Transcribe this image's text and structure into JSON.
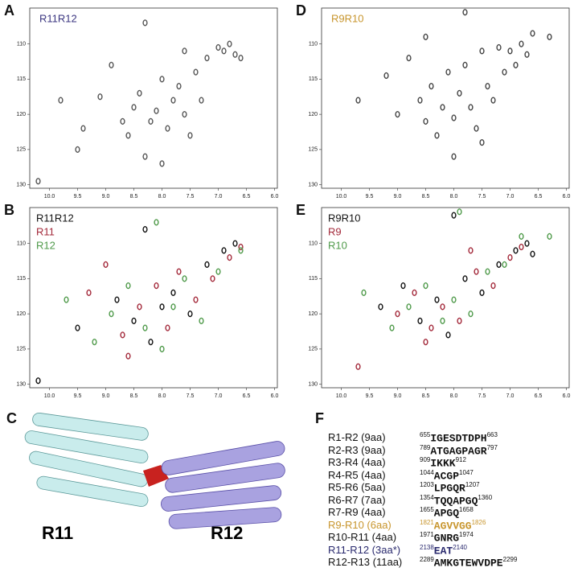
{
  "chart_data": [
    {
      "type": "scatter",
      "panel_label": "A",
      "xlim": [
        10.35,
        5.95
      ],
      "ylim": [
        104.9,
        130.5
      ],
      "xticks": [
        {
          "value": 10,
          "label": "10.0"
        },
        9.5,
        {
          "value": 9,
          "label": "9.0"
        },
        8.5,
        {
          "value": 8,
          "label": "8.0"
        },
        7.5,
        {
          "value": 7,
          "label": "7.0"
        },
        6.5,
        {
          "value": 6,
          "label": "6.0"
        }
      ],
      "yticks": [
        110,
        115,
        120,
        125,
        130
      ],
      "series": [
        {
          "name": "R11R12",
          "color": "#555555",
          "legend_color": "#3b3680",
          "x": [
            10.2,
            9.8,
            9.5,
            9.4,
            9.1,
            8.9,
            8.7,
            8.6,
            8.5,
            8.4,
            8.3,
            8.2,
            8.1,
            8.0,
            7.9,
            7.8,
            7.7,
            7.6,
            7.5,
            7.4,
            7.3,
            7.2,
            7.0,
            6.9,
            6.8,
            6.7,
            6.6,
            8.3,
            7.6,
            8.0
          ],
          "y": [
            129.5,
            118,
            125,
            122,
            117.5,
            113,
            121,
            123,
            119,
            117,
            126,
            121,
            119.5,
            115,
            122,
            118,
            116,
            120,
            123,
            114,
            118,
            112,
            110.5,
            111,
            110,
            111.5,
            112,
            107,
            111,
            127
          ]
        }
      ]
    },
    {
      "type": "scatter",
      "panel_label": "B",
      "xlim": [
        10.35,
        5.95
      ],
      "ylim": [
        104.9,
        130.5
      ],
      "xticks": [
        {
          "value": 10,
          "label": "10.0"
        },
        9.5,
        {
          "value": 9,
          "label": "9.0"
        },
        8.5,
        {
          "value": 8,
          "label": "8.0"
        },
        7.5,
        {
          "value": 7,
          "label": "7.0"
        },
        6.5,
        {
          "value": 6,
          "label": "6.0"
        }
      ],
      "yticks": [
        110,
        115,
        120,
        125,
        130
      ],
      "series": [
        {
          "name": "R11R12",
          "color": "#111111",
          "legend_color": "#111111",
          "x": [
            10.2,
            9.5,
            8.8,
            8.5,
            8.2,
            8.0,
            7.8,
            7.5,
            7.2,
            6.9,
            6.7,
            8.3
          ],
          "y": [
            129.5,
            122,
            118,
            121,
            124,
            119,
            117,
            120,
            113,
            111,
            110,
            108
          ]
        },
        {
          "name": "R11",
          "color": "#a3293a",
          "legend_color": "#a3293a",
          "x": [
            9.3,
            9.0,
            8.7,
            8.4,
            8.1,
            7.9,
            7.7,
            7.4,
            7.1,
            6.8,
            6.6,
            8.6
          ],
          "y": [
            117,
            113,
            123,
            119,
            116,
            122,
            114,
            118,
            115,
            112,
            110.5,
            126
          ]
        },
        {
          "name": "R12",
          "color": "#4f9a4a",
          "legend_color": "#4f9a4a",
          "x": [
            9.7,
            9.2,
            8.9,
            8.6,
            8.3,
            8.0,
            7.8,
            7.6,
            7.3,
            7.0,
            6.6,
            8.1
          ],
          "y": [
            118,
            124,
            120,
            116,
            122,
            125,
            119,
            115,
            121,
            114,
            111,
            107
          ]
        }
      ]
    },
    {
      "type": "scatter",
      "panel_label": "D",
      "xlim": [
        10.35,
        5.95
      ],
      "ylim": [
        104.9,
        130.5
      ],
      "xticks": [
        {
          "value": 10,
          "label": "10.0"
        },
        9.5,
        {
          "value": 9,
          "label": "9.0"
        },
        8.5,
        {
          "value": 8,
          "label": "8.0"
        },
        7.5,
        {
          "value": 7,
          "label": "7.0"
        },
        6.5,
        {
          "value": 6,
          "label": "6.0"
        }
      ],
      "yticks": [
        110,
        115,
        120,
        125,
        130
      ],
      "series": [
        {
          "name": "R9R10",
          "color": "#444444",
          "legend_color": "#c8962e",
          "x": [
            9.7,
            9.2,
            9.0,
            8.8,
            8.6,
            8.5,
            8.4,
            8.3,
            8.2,
            8.1,
            8.0,
            7.9,
            7.8,
            7.7,
            7.6,
            7.5,
            7.4,
            7.3,
            7.2,
            7.1,
            7.0,
            6.9,
            6.8,
            6.7,
            6.6,
            6.3,
            7.8,
            8.5,
            8.0,
            7.5
          ],
          "y": [
            118,
            114.5,
            120,
            112,
            118,
            121,
            116,
            123,
            119,
            114,
            120.5,
            117,
            113,
            119,
            122,
            111,
            116,
            118,
            110.5,
            114,
            111,
            113,
            110,
            111.5,
            108.5,
            109,
            105.5,
            109,
            126,
            124
          ]
        }
      ]
    },
    {
      "type": "scatter",
      "panel_label": "E",
      "xlim": [
        10.35,
        5.95
      ],
      "ylim": [
        104.9,
        130.5
      ],
      "xticks": [
        {
          "value": 10,
          "label": "10.0"
        },
        9.5,
        {
          "value": 9,
          "label": "9.0"
        },
        8.5,
        {
          "value": 8,
          "label": "8.0"
        },
        7.5,
        {
          "value": 7,
          "label": "7.0"
        },
        6.5,
        {
          "value": 6,
          "label": "6.0"
        }
      ],
      "yticks": [
        110,
        115,
        120,
        125,
        130
      ],
      "series": [
        {
          "name": "R9R10",
          "color": "#111111",
          "legend_color": "#111111",
          "x": [
            9.3,
            8.9,
            8.6,
            8.3,
            8.1,
            7.8,
            7.5,
            7.2,
            6.9,
            6.7,
            6.6,
            8.0
          ],
          "y": [
            119,
            116,
            121,
            118,
            123,
            115,
            117,
            113,
            111,
            110,
            111.5,
            106
          ]
        },
        {
          "name": "R9",
          "color": "#a3293a",
          "legend_color": "#a3293a",
          "x": [
            9.7,
            9.0,
            8.7,
            8.4,
            8.2,
            7.9,
            7.6,
            7.3,
            7.0,
            6.8,
            8.5,
            7.7
          ],
          "y": [
            127.5,
            120,
            117,
            122,
            119,
            121,
            114,
            116,
            112,
            110.5,
            124,
            111
          ]
        },
        {
          "name": "R10",
          "color": "#4f9a4a",
          "legend_color": "#4f9a4a",
          "x": [
            9.6,
            9.1,
            8.8,
            8.5,
            8.2,
            8.0,
            7.7,
            7.4,
            7.1,
            6.8,
            6.3,
            7.9
          ],
          "y": [
            117,
            122,
            119,
            116,
            121,
            118,
            120,
            114,
            113,
            109,
            109,
            105.5
          ]
        }
      ]
    }
  ],
  "structure": {
    "panel_label": "C",
    "labels": [
      "R11",
      "R12"
    ]
  },
  "linkers": {
    "panel_label": "F",
    "rows": [
      {
        "name": "R1-R2 (9aa)",
        "start": 655,
        "sequence": "IGESDTDPH",
        "end": 663,
        "color": "#111111"
      },
      {
        "name": "R2-R3 (9aa)",
        "start": 789,
        "sequence": "ATGAGPAGR",
        "end": 797,
        "color": "#111111"
      },
      {
        "name": "R3-R4 (4aa)",
        "start": 909,
        "sequence": "IKKK",
        "end": 912,
        "color": "#111111"
      },
      {
        "name": "R4-R5 (4aa)",
        "start": 1044,
        "sequence": "ACGP",
        "end": 1047,
        "color": "#111111"
      },
      {
        "name": "R5-R6 (5aa)",
        "start": 1203,
        "sequence": "LPGQR",
        "end": 1207,
        "color": "#111111"
      },
      {
        "name": "R6-R7 (7aa)",
        "start": 1354,
        "sequence": "TQQAPGQ",
        "end": 1360,
        "color": "#111111"
      },
      {
        "name": "R7-R9 (4aa)",
        "start": 1655,
        "sequence": "APGQ",
        "end": 1658,
        "color": "#111111"
      },
      {
        "name": "R9-R10 (6aa)",
        "start": 1821,
        "sequence": "AGVVGG",
        "end": 1826,
        "color": "#c8962e"
      },
      {
        "name": "R10-R11 (4aa)",
        "start": 1971,
        "sequence": "GNRG",
        "end": 1974,
        "color": "#111111"
      },
      {
        "name": "R11-R12 (3aa*)",
        "start": 2138,
        "sequence": "EAT",
        "end": 2140,
        "color": "#2a2a6e"
      },
      {
        "name": "R12-R13 (11aa)",
        "start": 2289,
        "sequence": "AMKGTEWVDPE",
        "end": 2299,
        "color": "#111111"
      }
    ]
  }
}
